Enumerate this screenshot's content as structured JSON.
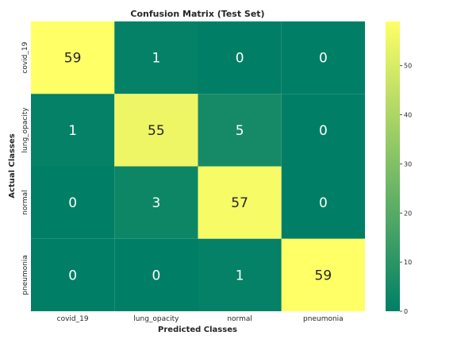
{
  "chart_data": {
    "type": "heatmap",
    "title": "Confusion Matrix (Test Set)",
    "xlabel": "Predicted Classes",
    "ylabel": "Actual Classes",
    "x_categories": [
      "covid_19",
      "lung_opacity",
      "normal",
      "pneumonia"
    ],
    "y_categories": [
      "covid_19",
      "lung_opacity",
      "normal",
      "pneumonia"
    ],
    "values": [
      [
        59,
        1,
        0,
        0
      ],
      [
        1,
        55,
        5,
        0
      ],
      [
        0,
        3,
        57,
        0
      ],
      [
        0,
        0,
        1,
        59
      ]
    ],
    "colorbar": {
      "min": 0,
      "max": 59,
      "ticks": [
        0,
        10,
        20,
        30,
        40,
        50
      ]
    },
    "colormap": {
      "low": "#007f66",
      "high": "#ffff66"
    },
    "text_colors": {
      "on_dark": "#ffffff",
      "on_light": "#262626"
    },
    "grid": false
  }
}
